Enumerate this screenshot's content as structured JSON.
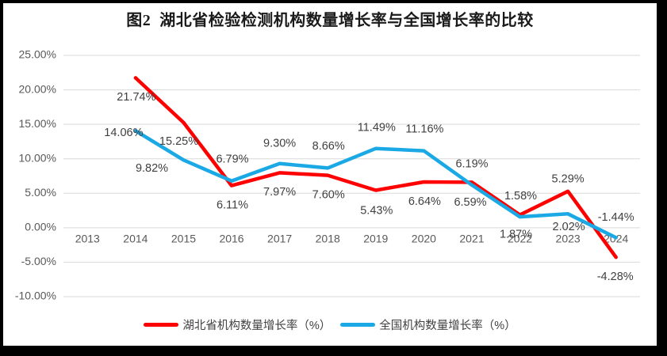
{
  "title": "图2  湖北省检验检测机构数量增长率与全国增长率的比较",
  "chart_data": {
    "type": "line",
    "categories": [
      "2013",
      "2014",
      "2015",
      "2016",
      "2017",
      "2018",
      "2019",
      "2020",
      "2021",
      "2022",
      "2023",
      "2024"
    ],
    "series": [
      {
        "name": "湖北省机构数量增长率（%）",
        "color": "#fe0000",
        "values": [
          null,
          21.74,
          15.25,
          6.11,
          7.97,
          7.6,
          5.43,
          6.64,
          6.59,
          1.87,
          5.29,
          -4.28
        ],
        "label_offsets": [
          null,
          [
            1,
            25
          ],
          [
            -6,
            24
          ],
          [
            1,
            25
          ],
          [
            0,
            25
          ],
          [
            1,
            25
          ],
          [
            1,
            26
          ],
          [
            1,
            25
          ],
          [
            -2,
            26
          ],
          [
            -5,
            25
          ],
          [
            0,
            -15
          ],
          [
            -1,
            25
          ]
        ]
      },
      {
        "name": "全国机构数量增长率（%）",
        "color": "#1aa9e5",
        "values": [
          null,
          14.06,
          9.82,
          6.79,
          9.3,
          8.66,
          11.49,
          11.16,
          6.19,
          1.58,
          2.02,
          -1.44
        ],
        "label_offsets": [
          null,
          [
            -15,
            3
          ],
          [
            -40,
            11
          ],
          [
            1,
            -27
          ],
          [
            0,
            -25
          ],
          [
            1,
            -27
          ],
          [
            1,
            -26
          ],
          [
            1,
            -27
          ],
          [
            0,
            -26
          ],
          [
            1,
            -26
          ],
          [
            1,
            17
          ],
          [
            0,
            -25
          ]
        ]
      }
    ],
    "ylim": [
      -10,
      25
    ],
    "y_tick_step": 5,
    "y_tick_labels": [
      "25.00%",
      "20.00%",
      "15.00%",
      "10.00%",
      "5.00%",
      "0.00%",
      "-5.00%",
      "-10.00%"
    ],
    "x_tick_labels": [
      "2013",
      "2014",
      "2015",
      "2016",
      "2017",
      "2018",
      "2019",
      "2020",
      "2021",
      "2022",
      "2023",
      "2024"
    ],
    "grid": true,
    "legend_position": "bottom",
    "data_label_format": "0.00%"
  },
  "colors": {
    "frame": "#000000",
    "background": "#ffffff",
    "gridline": "#d9d9d9",
    "axis_text": "#595959",
    "data_label_text": "#404040",
    "title_text": "#1a1a1a"
  }
}
